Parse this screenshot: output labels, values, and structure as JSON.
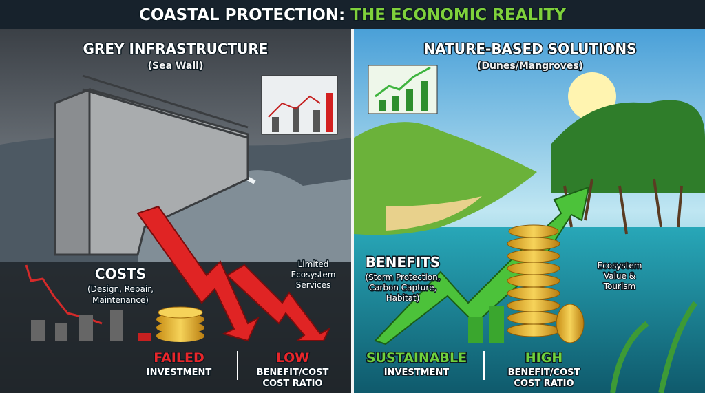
{
  "title": {
    "part1": "COASTAL PROTECTION:",
    "part2": "THE ECONOMIC REALITY"
  },
  "grey": {
    "heading": "GREY INFRASTRUCTURE",
    "subheading": "(Sea Wall)",
    "costs": "COSTS",
    "costs_note": [
      "(Design, Repair,",
      "Maintenance)"
    ],
    "services_note": [
      "Limited",
      "Ecosystem",
      "Services"
    ],
    "left_label": [
      "FAILED",
      "INVESTMENT"
    ],
    "right_label": [
      "LOW",
      "BENEFIT/COST",
      "COST RATIO"
    ]
  },
  "nature": {
    "heading": "NATURE-BASED SOLUTIONS",
    "subheading": "(Dunes/Mangroves)",
    "benefits": "BENEFITS",
    "benefits_note": [
      "(Storm Protection,",
      "Carbon Capture,",
      "Habitat)"
    ],
    "value_note": [
      "Ecosystem",
      "Value &",
      "Tourism"
    ],
    "left_label": [
      "SUSTAINABLE",
      "INVESTMENT"
    ],
    "right_label": [
      "HIGH",
      "BENEFIT/COST",
      "COST RATIO"
    ]
  }
}
